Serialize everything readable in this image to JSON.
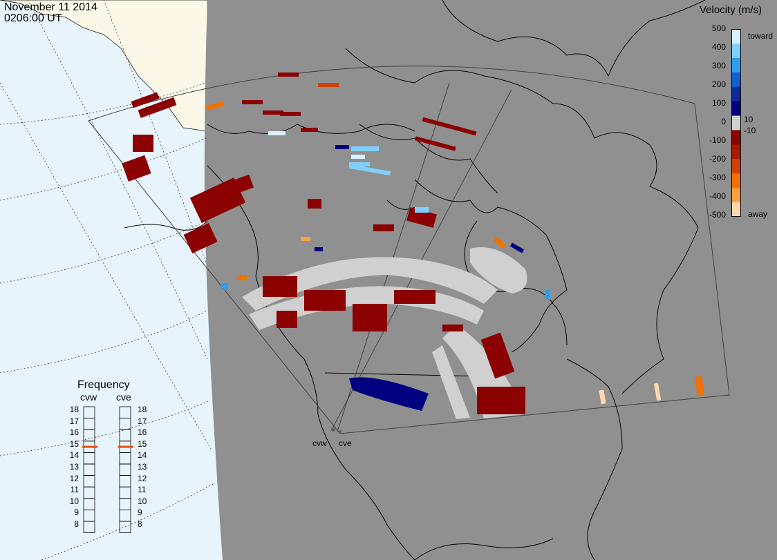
{
  "header": {
    "date": "November 11 2014",
    "time": "0206:00 UT"
  },
  "velocity_legend": {
    "title": "Velocity (m/s)",
    "ticks": [
      "500",
      "400",
      "300",
      "200",
      "100",
      "10",
      "0",
      "-10",
      "-100",
      "-200",
      "-300",
      "-400",
      "-500"
    ],
    "toward_label": "toward",
    "away_label": "away",
    "colors": [
      "#d8f0ff",
      "#80d0ff",
      "#2a9ff0",
      "#1060d0",
      "#0a2a9a",
      "#000080",
      "#d0d0d0",
      "#8b0000",
      "#a81a00",
      "#d04000",
      "#f07000",
      "#ffa040",
      "#ffd8b0"
    ]
  },
  "frequency": {
    "title": "Frequency",
    "radars": [
      "cvw",
      "cve"
    ],
    "scale": [
      "18",
      "17",
      "16",
      "15",
      "14",
      "13",
      "12",
      "11",
      "10",
      "9",
      "8"
    ],
    "selected": [
      15,
      15
    ]
  },
  "sites": [
    "cvw",
    "cve"
  ],
  "colors": {
    "ocean": "#e8f4fc",
    "land_outside": "#fbf8e8",
    "map_background": "#909090",
    "ground_scatter": "#d0d0d0",
    "coastline": "#000000",
    "frequency_marker": "#e05010"
  }
}
